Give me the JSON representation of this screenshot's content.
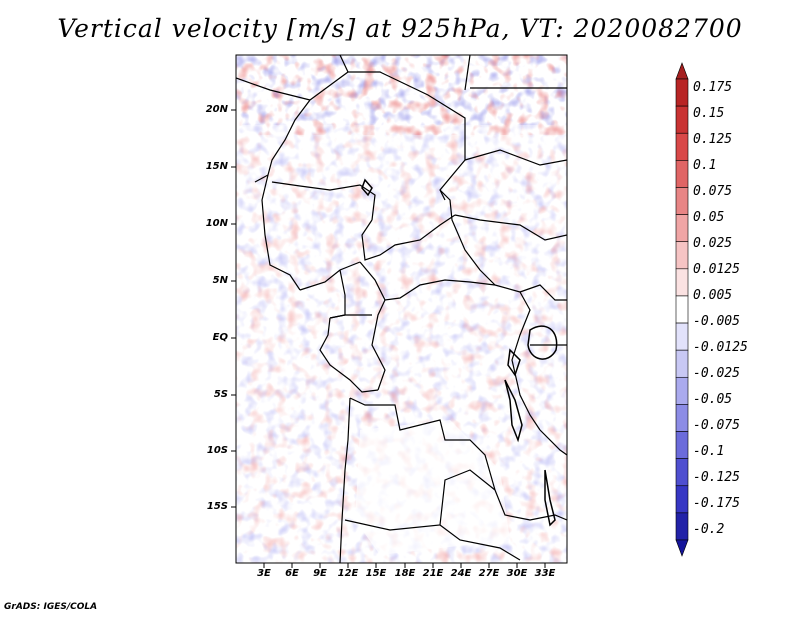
{
  "title": "Vertical velocity [m/s] at 925hPa, VT: 2020082700",
  "footer": "GrADS: IGES/COLA",
  "y_axis_labels": [
    "20N",
    "15N",
    "10N",
    "5N",
    "EQ",
    "5S",
    "10S",
    "15S"
  ],
  "x_axis_labels": [
    "3E",
    "6E",
    "9E",
    "12E",
    "15E",
    "18E",
    "21E",
    "24E",
    "27E",
    "30E",
    "33E"
  ],
  "colorbar": {
    "labels": [
      "0.175",
      "0.15",
      "0.125",
      "0.1",
      "0.075",
      "0.05",
      "0.025",
      "0.0125",
      "0.005",
      "-0.005",
      "-0.0125",
      "-0.025",
      "-0.05",
      "-0.075",
      "-0.1",
      "-0.125",
      "-0.175",
      "-0.2"
    ],
    "colors": [
      "#a51f1f",
      "#b82525",
      "#c93333",
      "#d94848",
      "#e06565",
      "#e88585",
      "#f0a5a5",
      "#f6c4c4",
      "#fbe2e2",
      "#ffffff",
      "#e2e2fb",
      "#c8c8f4",
      "#aaaaee",
      "#8c8ce6",
      "#6b6bdb",
      "#4f4fd0",
      "#3737c4",
      "#2222a8",
      "#14149a"
    ]
  }
}
